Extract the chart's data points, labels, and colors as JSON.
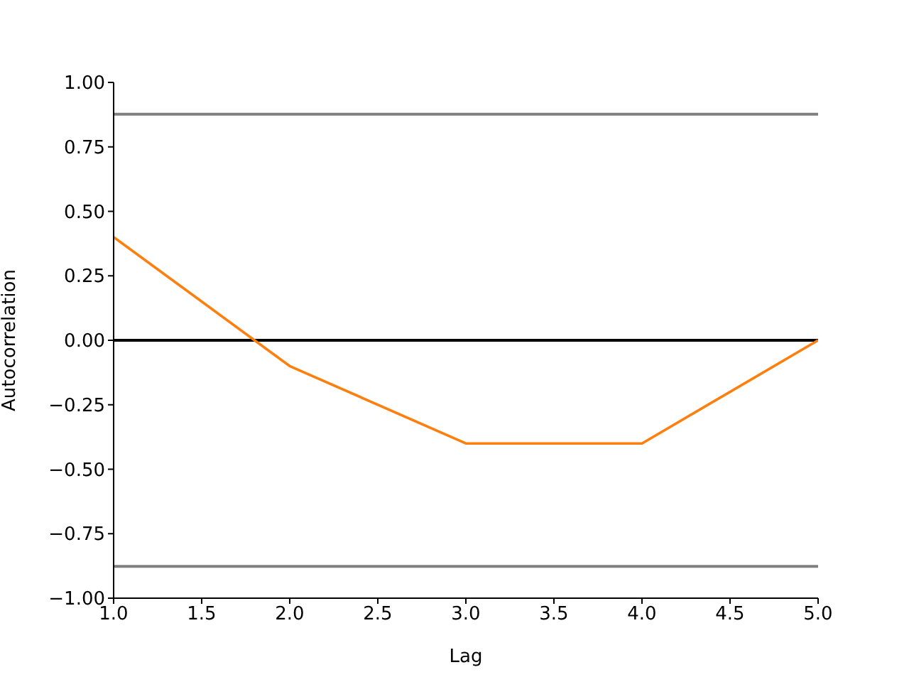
{
  "chart_data": {
    "type": "line",
    "xlabel": "Lag",
    "ylabel": "Autocorrelation",
    "x": [
      1,
      2,
      3,
      4,
      5
    ],
    "series": [
      {
        "color": "#ff7f0e",
        "values": [
          0.4,
          -0.1,
          -0.4,
          -0.4,
          0.0
        ]
      }
    ],
    "xlim": [
      1,
      5
    ],
    "xticks": [
      {
        "value": 1,
        "label": "1.0"
      },
      {
        "value": 1.5,
        "label": "1.5"
      },
      {
        "value": 2,
        "label": "2.0"
      },
      {
        "value": 2.5,
        "label": "2.5"
      },
      {
        "value": 3,
        "label": "3.0"
      },
      {
        "value": 3.5,
        "label": "3.5"
      },
      {
        "value": 4,
        "label": "4.0"
      },
      {
        "value": 4.5,
        "label": "4.5"
      },
      {
        "value": 5,
        "label": "5.0"
      }
    ],
    "ylim": [
      -1,
      1
    ],
    "yticks": [
      {
        "value": -1,
        "label": "−1.00"
      },
      {
        "value": -0.75,
        "label": "−0.75"
      },
      {
        "value": -0.5,
        "label": "−0.50"
      },
      {
        "value": -0.25,
        "label": "−0.25"
      },
      {
        "value": 0,
        "label": "0.00"
      },
      {
        "value": 0.25,
        "label": "0.25"
      },
      {
        "value": 0.5,
        "label": "0.50"
      },
      {
        "value": 0.75,
        "label": "0.75"
      },
      {
        "value": 1,
        "label": "1.00"
      }
    ],
    "ref_lines": [
      {
        "axis": "y",
        "value": 0.877,
        "color": "#808080"
      },
      {
        "axis": "y",
        "value": -0.877,
        "color": "#808080"
      },
      {
        "axis": "y",
        "value": 0,
        "color": "#000000"
      }
    ],
    "grid": false,
    "legend": false,
    "marker": "none",
    "line_style": "solid"
  }
}
